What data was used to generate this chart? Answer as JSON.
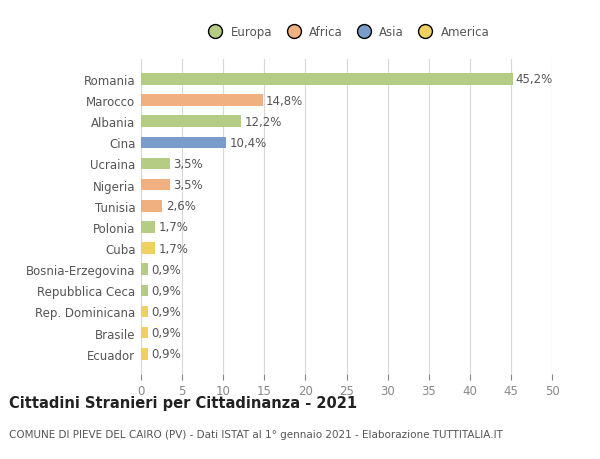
{
  "categories": [
    "Romania",
    "Marocco",
    "Albania",
    "Cina",
    "Ucraina",
    "Nigeria",
    "Tunisia",
    "Polonia",
    "Cuba",
    "Bosnia-Erzegovina",
    "Repubblica Ceca",
    "Rep. Dominicana",
    "Brasile",
    "Ecuador"
  ],
  "values": [
    45.2,
    14.8,
    12.2,
    10.4,
    3.5,
    3.5,
    2.6,
    1.7,
    1.7,
    0.9,
    0.9,
    0.9,
    0.9,
    0.9
  ],
  "labels": [
    "45,2%",
    "14,8%",
    "12,2%",
    "10,4%",
    "3,5%",
    "3,5%",
    "2,6%",
    "1,7%",
    "1,7%",
    "0,9%",
    "0,9%",
    "0,9%",
    "0,9%",
    "0,9%"
  ],
  "colors": [
    "#b5cc85",
    "#f0b080",
    "#b5cc85",
    "#7a9cc8",
    "#b5cc85",
    "#f0b080",
    "#f0b080",
    "#b5cc85",
    "#f0d060",
    "#b5cc85",
    "#b5cc85",
    "#f0d060",
    "#f0d060",
    "#f0d060"
  ],
  "legend_labels": [
    "Europa",
    "Africa",
    "Asia",
    "America"
  ],
  "legend_colors": [
    "#b5cc85",
    "#f0b080",
    "#7a9cc8",
    "#f0d060"
  ],
  "xlim": [
    0,
    50
  ],
  "xticks": [
    0,
    5,
    10,
    15,
    20,
    25,
    30,
    35,
    40,
    45,
    50
  ],
  "title": "Cittadini Stranieri per Cittadinanza - 2021",
  "subtitle": "COMUNE DI PIEVE DEL CAIRO (PV) - Dati ISTAT al 1° gennaio 2021 - Elaborazione TUTTITALIA.IT",
  "background_color": "#ffffff",
  "grid_color": "#d8d8d8",
  "bar_height": 0.55,
  "label_fontsize": 8.5,
  "tick_fontsize": 8.5,
  "title_fontsize": 10.5,
  "subtitle_fontsize": 7.5,
  "label_color": "#555555",
  "tick_color": "#888888"
}
